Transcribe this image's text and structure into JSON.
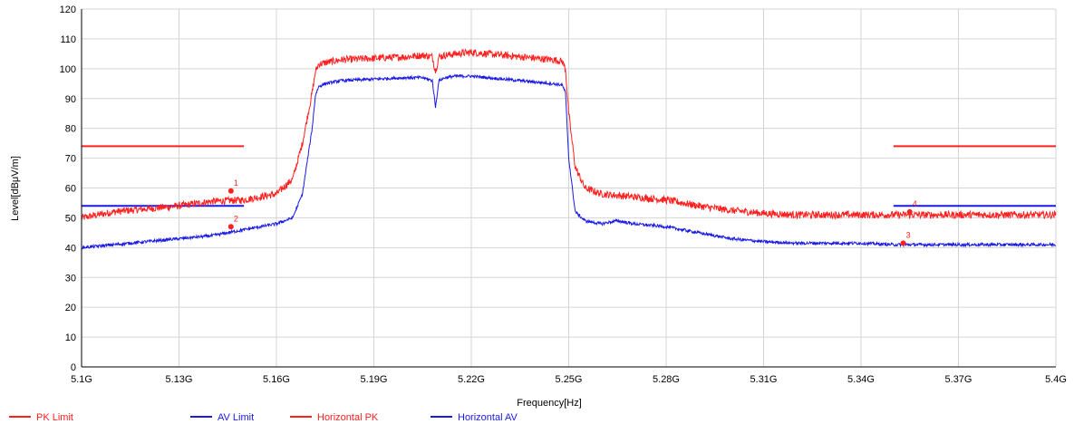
{
  "chart_data": {
    "type": "line",
    "title": "",
    "xlabel": "Frequency[Hz]",
    "ylabel": "Level[dBμV/m]",
    "xlim": [
      5.1,
      5.4
    ],
    "ylim": [
      0,
      120
    ],
    "x_ticks": [
      5.1,
      5.13,
      5.16,
      5.19,
      5.22,
      5.25,
      5.28,
      5.31,
      5.34,
      5.37,
      5.4
    ],
    "x_tick_labels": [
      "5.1G",
      "5.13G",
      "5.16G",
      "5.19G",
      "5.22G",
      "5.25G",
      "5.28G",
      "5.31G",
      "5.34G",
      "5.37G",
      "5.4G"
    ],
    "y_ticks": [
      0,
      10,
      20,
      30,
      40,
      50,
      60,
      70,
      80,
      90,
      100,
      110,
      120
    ],
    "y_tick_labels": [
      "0",
      "10",
      "20",
      "30",
      "40",
      "50",
      "60",
      "70",
      "80",
      "90",
      "100",
      "110",
      "120"
    ],
    "grid": true,
    "legend_position": "bottom-left",
    "series": [
      {
        "name": "PK Limit",
        "color": "#ff2020",
        "kind": "limit",
        "segments": [
          {
            "x": [
              5.1,
              5.15
            ],
            "y": [
              74,
              74
            ]
          },
          {
            "x": [
              5.35,
              5.4
            ],
            "y": [
              74,
              74
            ]
          }
        ]
      },
      {
        "name": "AV Limit",
        "color": "#1a1ae6",
        "kind": "limit",
        "segments": [
          {
            "x": [
              5.1,
              5.15
            ],
            "y": [
              54,
              54
            ]
          },
          {
            "x": [
              5.35,
              5.4
            ],
            "y": [
              54,
              54
            ]
          }
        ]
      },
      {
        "name": "Horizontal PK",
        "color": "#ff2020",
        "kind": "trace",
        "noise": 1.2,
        "x": [
          5.1,
          5.11,
          5.12,
          5.13,
          5.14,
          5.15,
          5.155,
          5.16,
          5.165,
          5.168,
          5.171,
          5.172,
          5.173,
          5.175,
          5.18,
          5.19,
          5.2,
          5.205,
          5.208,
          5.209,
          5.21,
          5.212,
          5.215,
          5.22,
          5.225,
          5.23,
          5.235,
          5.24,
          5.245,
          5.248,
          5.249,
          5.25,
          5.252,
          5.255,
          5.26,
          5.27,
          5.28,
          5.29,
          5.3,
          5.31,
          5.32,
          5.33,
          5.34,
          5.35,
          5.36,
          5.37,
          5.38,
          5.39,
          5.4
        ],
        "y": [
          50,
          52,
          53,
          54,
          55.5,
          56,
          57,
          58,
          63,
          75,
          92,
          99,
          101.5,
          102,
          103,
          103.5,
          104,
          104.5,
          104,
          99,
          104,
          104.5,
          105,
          105.5,
          105,
          104.5,
          104,
          103.5,
          103,
          102.5,
          100,
          85,
          67,
          60,
          58,
          57,
          56,
          54,
          52.5,
          51.5,
          51,
          51,
          51,
          51,
          51,
          51,
          51,
          51,
          51
        ]
      },
      {
        "name": "Horizontal AV",
        "color": "#1a1ae6",
        "kind": "trace",
        "noise": 0.5,
        "x": [
          5.1,
          5.11,
          5.12,
          5.13,
          5.14,
          5.15,
          5.155,
          5.16,
          5.165,
          5.168,
          5.171,
          5.172,
          5.173,
          5.175,
          5.18,
          5.19,
          5.2,
          5.205,
          5.208,
          5.209,
          5.21,
          5.212,
          5.215,
          5.22,
          5.225,
          5.23,
          5.235,
          5.24,
          5.245,
          5.248,
          5.249,
          5.25,
          5.252,
          5.255,
          5.26,
          5.265,
          5.27,
          5.28,
          5.29,
          5.3,
          5.31,
          5.32,
          5.33,
          5.34,
          5.35,
          5.36,
          5.37,
          5.38,
          5.39,
          5.4
        ],
        "y": [
          40,
          41,
          42,
          43,
          44,
          46,
          47,
          48,
          50,
          58,
          80,
          91,
          94,
          95,
          96,
          96.5,
          97,
          97,
          96,
          87,
          96,
          97,
          97.5,
          97.5,
          97,
          96.5,
          96,
          95.5,
          95,
          94.5,
          92,
          70,
          52,
          49,
          48,
          49,
          48,
          47,
          45,
          43,
          42,
          41.5,
          41.5,
          41.5,
          41,
          41,
          41,
          41,
          41,
          41
        ]
      }
    ],
    "markers": [
      {
        "label": "1",
        "x": 5.146,
        "y": 59,
        "color": "#ff2020"
      },
      {
        "label": "2",
        "x": 5.146,
        "y": 47,
        "color": "#ff2020"
      },
      {
        "label": "3",
        "x": 5.353,
        "y": 41.5,
        "color": "#ff2020"
      },
      {
        "label": "4",
        "x": 5.355,
        "y": 52,
        "color": "#ff2020"
      }
    ]
  }
}
